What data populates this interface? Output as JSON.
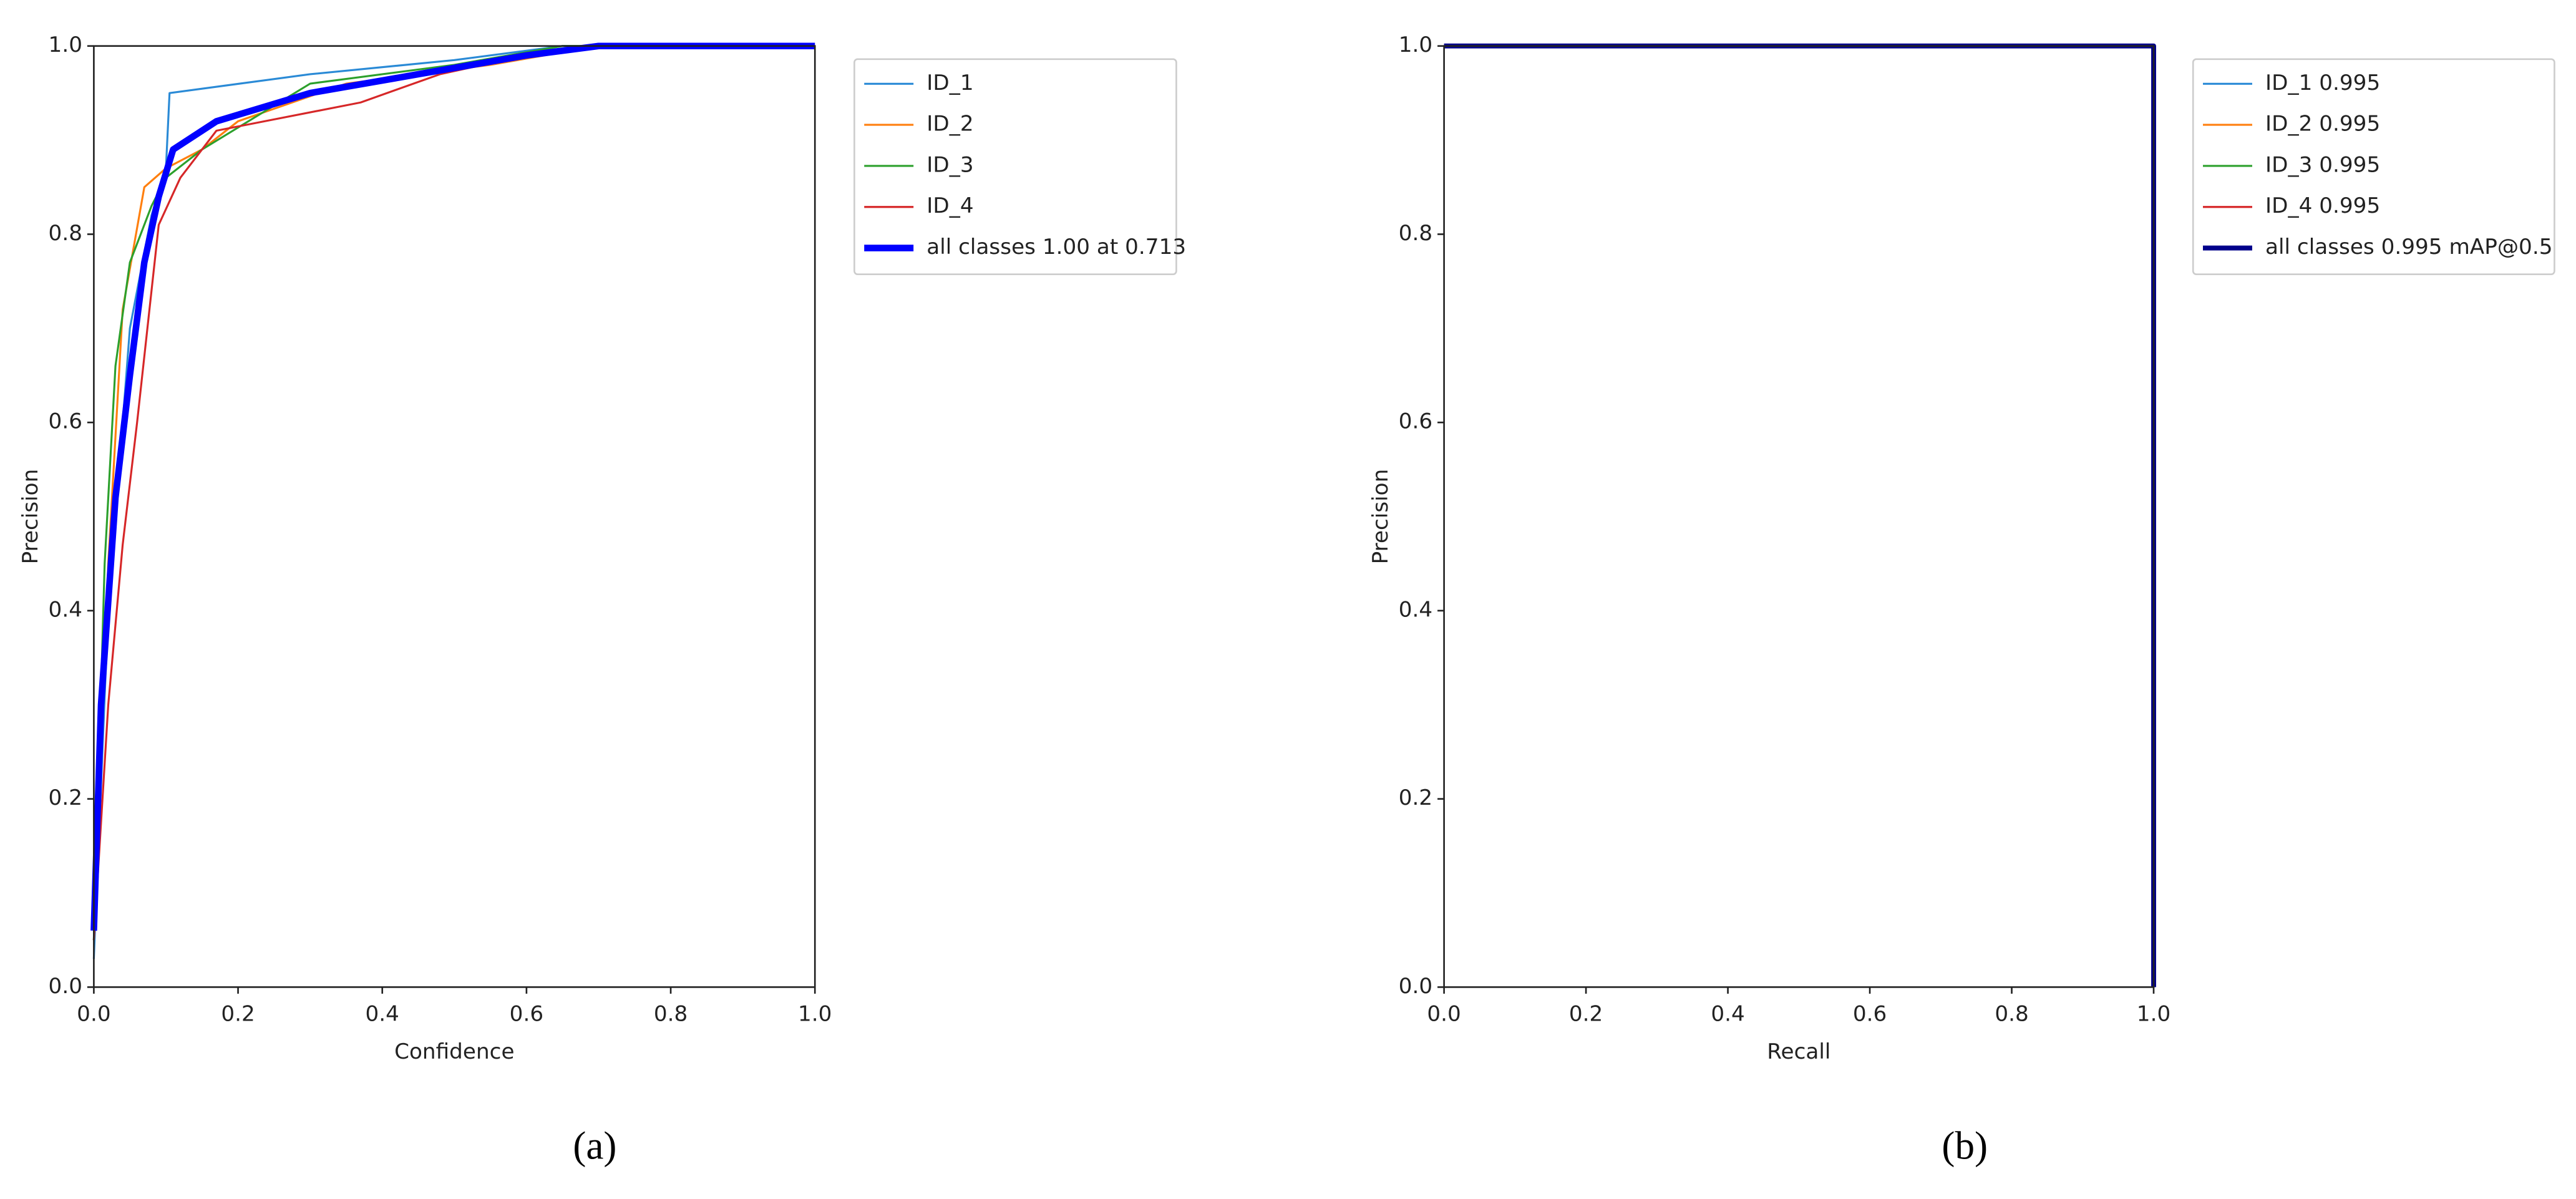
{
  "chart_data": [
    {
      "type": "line",
      "caption": "(a)",
      "xlabel": "Confidence",
      "ylabel": "Precision",
      "xlim": [
        0,
        1
      ],
      "ylim": [
        0,
        1
      ],
      "xticks": [
        {
          "value": 0,
          "label": "0.0"
        },
        0.2,
        0.4,
        0.6,
        0.8,
        {
          "value": 1,
          "label": "1.0"
        }
      ],
      "yticks": [
        {
          "value": 0,
          "label": "0.0"
        },
        0.2,
        0.4,
        0.6,
        0.8,
        {
          "value": 1,
          "label": "1.0"
        }
      ],
      "legend": "outside upper right",
      "series": [
        {
          "name": "ID_1",
          "color": "#2a8ad6",
          "linewidth": 1.2,
          "x": [
            0,
            0.02,
            0.05,
            0.08,
            0.1,
            0.105,
            0.3,
            0.5,
            0.65,
            1
          ],
          "values": [
            0.03,
            0.4,
            0.7,
            0.82,
            0.87,
            0.95,
            0.97,
            0.985,
            1,
            1
          ]
        },
        {
          "name": "ID_2",
          "color": "#ff7f0e",
          "linewidth": 1.2,
          "x": [
            0,
            0.02,
            0.04,
            0.07,
            0.1,
            0.15,
            0.2,
            0.35,
            0.55,
            0.7,
            1
          ],
          "values": [
            0.05,
            0.45,
            0.72,
            0.85,
            0.87,
            0.89,
            0.92,
            0.96,
            0.98,
            1,
            1
          ]
        },
        {
          "name": "ID_3",
          "color": "#2ca02c",
          "linewidth": 1.2,
          "x": [
            0,
            0.015,
            0.03,
            0.05,
            0.08,
            0.1,
            0.15,
            0.3,
            0.5,
            0.65,
            1
          ],
          "values": [
            0.05,
            0.45,
            0.66,
            0.77,
            0.83,
            0.86,
            0.89,
            0.96,
            0.98,
            1,
            1
          ]
        },
        {
          "name": "ID_4",
          "color": "#d62728",
          "linewidth": 1.2,
          "x": [
            0,
            0.02,
            0.04,
            0.06,
            0.08,
            0.09,
            0.12,
            0.17,
            0.37,
            0.48,
            0.6,
            0.7,
            1
          ],
          "values": [
            0.05,
            0.3,
            0.47,
            0.6,
            0.74,
            0.81,
            0.86,
            0.91,
            0.94,
            0.97,
            0.99,
            1,
            1
          ]
        },
        {
          "name": "all classes 1.00 at 0.713",
          "color": "#0000ff",
          "linewidth": 4,
          "x": [
            0,
            0.01,
            0.03,
            0.05,
            0.07,
            0.09,
            0.11,
            0.17,
            0.3,
            0.45,
            0.6,
            0.7,
            1
          ],
          "values": [
            0.06,
            0.3,
            0.52,
            0.65,
            0.77,
            0.84,
            0.89,
            0.92,
            0.95,
            0.97,
            0.99,
            1,
            1
          ]
        }
      ]
    },
    {
      "type": "line",
      "caption": "(b)",
      "xlabel": "Recall",
      "ylabel": "Precision",
      "xlim": [
        0,
        1
      ],
      "ylim": [
        0,
        1
      ],
      "xticks": [
        {
          "value": 0,
          "label": "0.0"
        },
        0.2,
        0.4,
        0.6,
        0.8,
        {
          "value": 1,
          "label": "1.0"
        }
      ],
      "yticks": [
        {
          "value": 0,
          "label": "0.0"
        },
        0.2,
        0.4,
        0.6,
        0.8,
        {
          "value": 1,
          "label": "1.0"
        }
      ],
      "legend": "outside upper right",
      "series": [
        {
          "name": "ID_1 0.995",
          "color": "#2a8ad6",
          "linewidth": 1.2,
          "x": [
            0,
            1,
            1
          ],
          "values": [
            1,
            1,
            0
          ]
        },
        {
          "name": "ID_2 0.995",
          "color": "#ff7f0e",
          "linewidth": 1.2,
          "x": [
            0,
            1,
            1
          ],
          "values": [
            1,
            1,
            0
          ]
        },
        {
          "name": "ID_3 0.995",
          "color": "#2ca02c",
          "linewidth": 1.2,
          "x": [
            0,
            1,
            1
          ],
          "values": [
            1,
            1,
            0
          ]
        },
        {
          "name": "ID_4 0.995",
          "color": "#d62728",
          "linewidth": 1.2,
          "x": [
            0,
            1,
            1
          ],
          "values": [
            1,
            1,
            0
          ]
        },
        {
          "name": "all classes 0.995 mAP@0.5",
          "color": "#00008b",
          "linewidth": 3,
          "x": [
            0,
            1,
            1
          ],
          "values": [
            1,
            1,
            0
          ]
        }
      ]
    }
  ]
}
